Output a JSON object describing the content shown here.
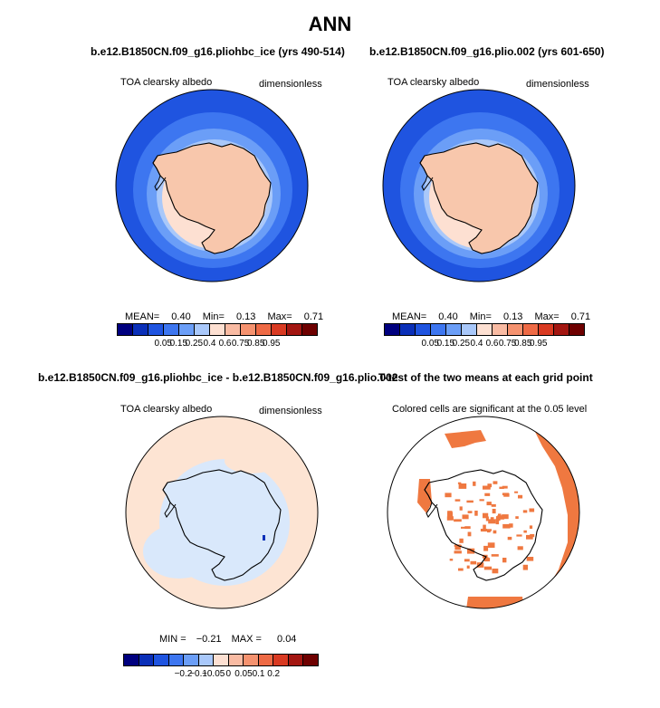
{
  "title": "ANN",
  "colors": {
    "cbar12": [
      "#00007f",
      "#0a2fb8",
      "#1f54e0",
      "#3d76f0",
      "#6b9ef7",
      "#a9c8fa",
      "#fde0d2",
      "#f9bba3",
      "#f5926f",
      "#ee6a45",
      "#d93a22",
      "#a31611",
      "#6e0000"
    ],
    "land": "#f8c7ac",
    "significant": "#ef7840",
    "diff_pos": "#fde4d3",
    "diff_neg": "#d9e8fb"
  },
  "panels": {
    "tl": {
      "case": "b.e12.B1850CN.f09_g16.pliohbc_ice (yrs 490-514)",
      "variable": "TOA clearsky albedo",
      "units": "dimensionless",
      "mean_label": "MEAN=",
      "mean": "0.40",
      "min_label": "Min=",
      "min": "0.13",
      "max_label": "Max=",
      "max": "0.71",
      "ticks": [
        "0.05",
        "0.15",
        "0.25",
        "0.4",
        "0.6",
        "0.75",
        "0.85",
        "0.95"
      ]
    },
    "tr": {
      "case": "b.e12.B1850CN.f09_g16.plio.002 (yrs 601-650)",
      "variable": "TOA clearsky albedo",
      "units": "dimensionless",
      "mean_label": "MEAN=",
      "mean": "0.40",
      "min_label": "Min=",
      "min": "0.13",
      "max_label": "Max=",
      "max": "0.71",
      "ticks": [
        "0.05",
        "0.15",
        "0.25",
        "0.4",
        "0.6",
        "0.75",
        "0.85",
        "0.95"
      ]
    },
    "bl": {
      "case": "b.e12.B1850CN.f09_g16.pliohbc_ice - b.e12.B1850CN.f09_g16.plio.002",
      "variable": "TOA clearsky albedo",
      "units": "dimensionless",
      "min_label": "MIN =",
      "min": "−0.21",
      "max_label": "MAX =",
      "max": "0.04",
      "ticks": [
        "−0.2",
        "−0.1",
        "−0.05",
        "0",
        "0.05",
        "0.1",
        "0.2"
      ]
    },
    "br": {
      "case": "T-test of the two means at each grid point",
      "note": "Colored cells are significant at the 0.05 level"
    }
  }
}
